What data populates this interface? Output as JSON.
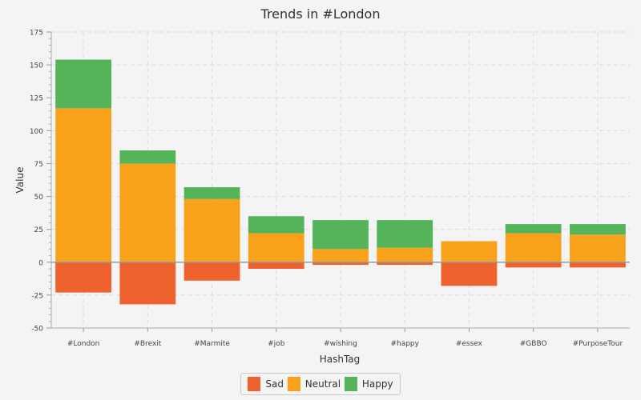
{
  "chart_data": {
    "type": "bar",
    "stacked": true,
    "title": "Trends in #London",
    "xlabel": "HashTag",
    "ylabel": "Value",
    "ylim": [
      -50,
      175
    ],
    "yticks": [
      -50,
      -25,
      0,
      25,
      50,
      75,
      100,
      125,
      150,
      175
    ],
    "grid": true,
    "legend_position": "bottom",
    "categories": [
      "#London",
      "#Brexit",
      "#Marmite",
      "#job",
      "#wishing",
      "#happy",
      "#essex",
      "#GBBO",
      "#PurposeTour"
    ],
    "series": [
      {
        "name": "Sad",
        "color": "#f0622d",
        "values": [
          -23,
          -32,
          -14,
          -5,
          -2,
          -2,
          -18,
          -4,
          -4
        ]
      },
      {
        "name": "Neutral",
        "color": "#f8a21c",
        "values": [
          117,
          75,
          48,
          22,
          10,
          11,
          16,
          22,
          21
        ]
      },
      {
        "name": "Happy",
        "color": "#55b359",
        "values": [
          37,
          10,
          9,
          13,
          22,
          21,
          0,
          7,
          8
        ]
      }
    ]
  }
}
